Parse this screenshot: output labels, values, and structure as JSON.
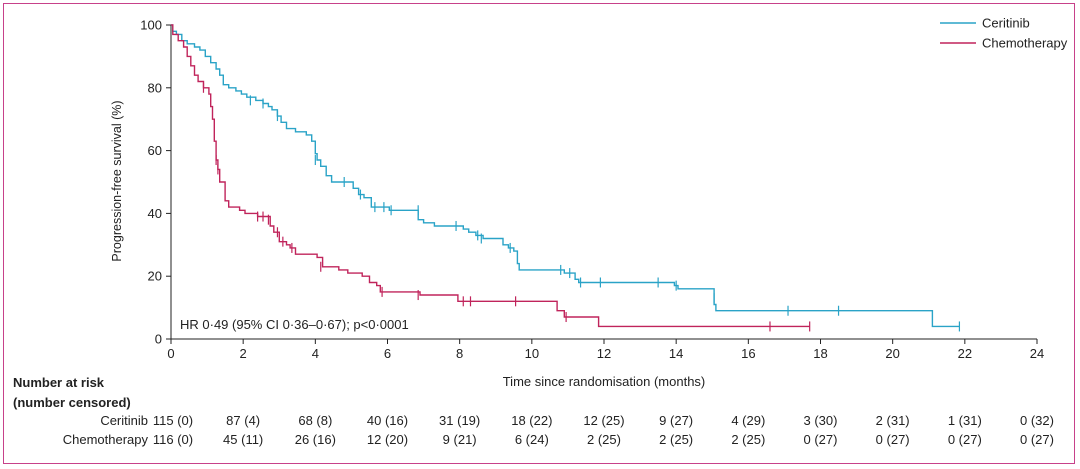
{
  "chart_data": {
    "type": "line",
    "subtype": "kaplan-meier",
    "ylabel": "Progression-free survival (%)",
    "xlabel": "Time since randomisation (months)",
    "xlim": [
      0,
      24
    ],
    "ylim": [
      0,
      100
    ],
    "xticks": [
      "0",
      "2",
      "4",
      "6",
      "8",
      "10",
      "12",
      "14",
      "16",
      "18",
      "20",
      "22",
      "24"
    ],
    "yticks": [
      "0",
      "20",
      "40",
      "60",
      "80",
      "100"
    ],
    "grid": false,
    "legend_position": "top-right",
    "annotation": "HR 0·49 (95% CI 0·36–0·67); p<0·0001",
    "series": [
      {
        "name": "Ceritinib",
        "color": "#2aa3c7",
        "steps": [
          [
            0,
            100
          ],
          [
            0.05,
            98
          ],
          [
            0.15,
            97
          ],
          [
            0.3,
            95
          ],
          [
            0.45,
            94
          ],
          [
            0.65,
            93
          ],
          [
            0.8,
            92
          ],
          [
            0.95,
            90
          ],
          [
            1.1,
            88
          ],
          [
            1.25,
            86
          ],
          [
            1.35,
            84
          ],
          [
            1.45,
            81
          ],
          [
            1.6,
            80
          ],
          [
            1.8,
            79
          ],
          [
            1.95,
            78
          ],
          [
            2.1,
            77
          ],
          [
            2.35,
            76
          ],
          [
            2.55,
            75
          ],
          [
            2.7,
            74
          ],
          [
            2.8,
            73
          ],
          [
            2.95,
            71
          ],
          [
            3.05,
            69
          ],
          [
            3.2,
            67
          ],
          [
            3.45,
            66
          ],
          [
            3.75,
            65
          ],
          [
            3.9,
            63
          ],
          [
            4.0,
            59
          ],
          [
            4.05,
            57
          ],
          [
            4.15,
            55
          ],
          [
            4.3,
            52
          ],
          [
            4.45,
            50
          ],
          [
            5.05,
            48
          ],
          [
            5.2,
            46
          ],
          [
            5.35,
            45
          ],
          [
            5.55,
            42
          ],
          [
            6.05,
            41
          ],
          [
            6.85,
            38
          ],
          [
            7.0,
            37
          ],
          [
            7.3,
            36
          ],
          [
            7.8,
            36
          ],
          [
            8.1,
            35
          ],
          [
            8.25,
            34
          ],
          [
            8.45,
            33
          ],
          [
            8.65,
            32
          ],
          [
            9.2,
            30
          ],
          [
            9.35,
            29
          ],
          [
            9.5,
            28
          ],
          [
            9.6,
            24
          ],
          [
            9.65,
            22
          ],
          [
            10.9,
            21
          ],
          [
            11.2,
            19
          ],
          [
            11.3,
            18
          ],
          [
            13.95,
            17
          ],
          [
            14.05,
            16
          ],
          [
            15.05,
            11
          ],
          [
            15.1,
            9
          ],
          [
            21.1,
            4
          ],
          [
            21.85,
            4
          ]
        ],
        "censored": [
          [
            2.2,
            76
          ],
          [
            2.55,
            75
          ],
          [
            2.95,
            71
          ],
          [
            4.0,
            57
          ],
          [
            4.8,
            50
          ],
          [
            5.25,
            46
          ],
          [
            5.65,
            42
          ],
          [
            5.9,
            42
          ],
          [
            6.1,
            41
          ],
          [
            6.85,
            41
          ],
          [
            7.9,
            36
          ],
          [
            8.5,
            33
          ],
          [
            8.6,
            32
          ],
          [
            9.4,
            29
          ],
          [
            10.8,
            22
          ],
          [
            11.05,
            21
          ],
          [
            11.35,
            18
          ],
          [
            11.9,
            18
          ],
          [
            13.5,
            18
          ],
          [
            14.0,
            17
          ],
          [
            15.05,
            13
          ],
          [
            17.1,
            9
          ],
          [
            18.5,
            9
          ],
          [
            21.85,
            4
          ]
        ]
      },
      {
        "name": "Chemotherapy",
        "color": "#c0245b",
        "steps": [
          [
            0,
            100
          ],
          [
            0.05,
            97
          ],
          [
            0.2,
            95
          ],
          [
            0.35,
            93
          ],
          [
            0.45,
            90
          ],
          [
            0.55,
            87
          ],
          [
            0.65,
            84
          ],
          [
            0.75,
            82
          ],
          [
            0.9,
            80
          ],
          [
            1.05,
            78
          ],
          [
            1.1,
            74
          ],
          [
            1.15,
            70
          ],
          [
            1.2,
            63
          ],
          [
            1.25,
            57
          ],
          [
            1.3,
            54
          ],
          [
            1.35,
            50
          ],
          [
            1.5,
            44
          ],
          [
            1.6,
            42
          ],
          [
            1.9,
            41
          ],
          [
            2.05,
            40
          ],
          [
            2.4,
            39
          ],
          [
            2.75,
            36
          ],
          [
            2.85,
            34
          ],
          [
            3.0,
            31
          ],
          [
            3.2,
            30
          ],
          [
            3.3,
            29
          ],
          [
            3.45,
            27
          ],
          [
            4.05,
            26
          ],
          [
            4.2,
            23
          ],
          [
            4.65,
            22
          ],
          [
            4.9,
            21
          ],
          [
            5.3,
            20
          ],
          [
            5.5,
            18
          ],
          [
            5.7,
            17
          ],
          [
            5.8,
            15
          ],
          [
            6.9,
            14
          ],
          [
            7.95,
            12
          ],
          [
            9.55,
            12
          ],
          [
            10.7,
            9
          ],
          [
            10.9,
            7
          ],
          [
            11.85,
            4
          ],
          [
            17.7,
            4
          ]
        ],
        "censored": [
          [
            0.9,
            80
          ],
          [
            1.25,
            57
          ],
          [
            1.3,
            54
          ],
          [
            2.4,
            39
          ],
          [
            2.55,
            39
          ],
          [
            2.7,
            38
          ],
          [
            2.95,
            34
          ],
          [
            3.1,
            31
          ],
          [
            3.35,
            29
          ],
          [
            4.15,
            23
          ],
          [
            5.85,
            15
          ],
          [
            6.85,
            14
          ],
          [
            8.1,
            12
          ],
          [
            8.3,
            12
          ],
          [
            9.55,
            12
          ],
          [
            10.95,
            7
          ],
          [
            16.6,
            4
          ],
          [
            17.7,
            4
          ]
        ]
      }
    ],
    "number_at_risk": {
      "title_line1": "Number at risk",
      "title_line2": "(number censored)",
      "rows": [
        {
          "arm": "Ceritinib",
          "values": [
            "115 (0)",
            "87 (4)",
            "68 (8)",
            "40 (16)",
            "31 (19)",
            "18 (22)",
            "12 (25)",
            "9 (27)",
            "4 (29)",
            "3 (30)",
            "2 (31)",
            "1 (31)",
            "0 (32)"
          ]
        },
        {
          "arm": "Chemotherapy",
          "values": [
            "116 (0)",
            "45 (11)",
            "26 (16)",
            "12 (20)",
            "9 (21)",
            "6 (24)",
            "2 (25)",
            "2 (25)",
            "2 (25)",
            "0 (27)",
            "0 (27)",
            "0 (27)",
            "0 (27)"
          ]
        }
      ]
    }
  }
}
